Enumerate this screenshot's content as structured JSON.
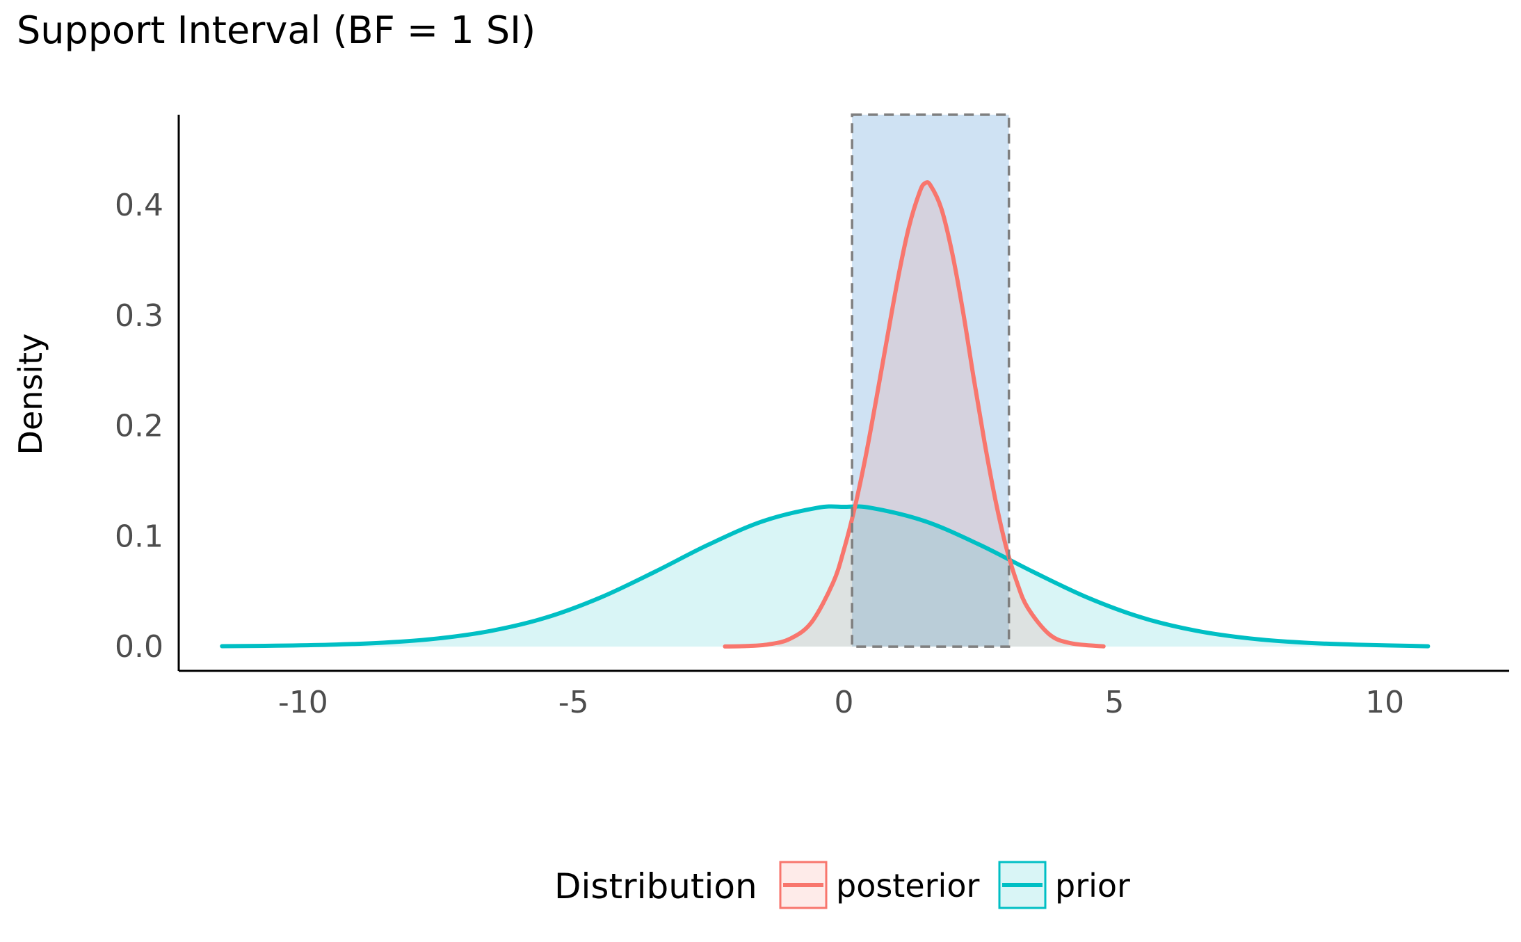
{
  "chart_data": {
    "type": "area",
    "title": "Support Interval (BF = 1 SI)",
    "xlabel": "",
    "ylabel": "Density",
    "xlim": [
      -12.3,
      12.3
    ],
    "ylim": [
      -0.022,
      0.482
    ],
    "x_ticks": [
      -10,
      -5,
      0,
      5,
      10
    ],
    "x_tick_labels": [
      "-10",
      "-5",
      "0",
      "5",
      "10"
    ],
    "y_ticks": [
      0.0,
      0.1,
      0.2,
      0.3,
      0.4
    ],
    "y_tick_labels": [
      "0.0",
      "0.1",
      "0.2",
      "0.3",
      "0.4"
    ],
    "grid": false,
    "support_interval": {
      "low": 0.15,
      "high": 3.05,
      "fill": "#cfe2f3",
      "border": "#7f7f7f"
    },
    "legend": {
      "title": "Distribution",
      "position": "bottom",
      "entries": [
        "posterior",
        "prior"
      ]
    },
    "series": [
      {
        "name": "posterior",
        "color": "#f8766d",
        "x": [
          -2.2,
          -1.8,
          -1.4,
          -1.0,
          -0.6,
          -0.2,
          0.0,
          0.2,
          0.4,
          0.6,
          0.8,
          1.0,
          1.2,
          1.4,
          1.5,
          1.6,
          1.8,
          2.0,
          2.2,
          2.4,
          2.6,
          2.8,
          3.0,
          3.2,
          3.4,
          3.8,
          4.2,
          4.8
        ],
        "y": [
          0.0001,
          0.0005,
          0.002,
          0.007,
          0.022,
          0.058,
          0.088,
          0.126,
          0.172,
          0.225,
          0.28,
          0.334,
          0.38,
          0.412,
          0.42,
          0.418,
          0.397,
          0.357,
          0.304,
          0.243,
          0.185,
          0.133,
          0.09,
          0.058,
          0.035,
          0.011,
          0.003,
          0.0002
        ]
      },
      {
        "name": "prior",
        "color": "#00bfc4",
        "x": [
          -11.5,
          -10.5,
          -9.5,
          -8.5,
          -7.5,
          -6.5,
          -5.5,
          -4.5,
          -3.5,
          -2.5,
          -1.5,
          -0.5,
          0.0,
          0.5,
          1.5,
          2.5,
          3.5,
          4.5,
          5.5,
          6.5,
          7.5,
          8.5,
          9.5,
          10.8
        ],
        "y": [
          0.0004,
          0.0008,
          0.0017,
          0.0036,
          0.0074,
          0.0145,
          0.0264,
          0.0445,
          0.0677,
          0.0925,
          0.1136,
          0.1257,
          0.1267,
          0.1257,
          0.1136,
          0.0925,
          0.0677,
          0.0445,
          0.0264,
          0.0145,
          0.0074,
          0.0036,
          0.0017,
          0.0003
        ]
      }
    ]
  }
}
